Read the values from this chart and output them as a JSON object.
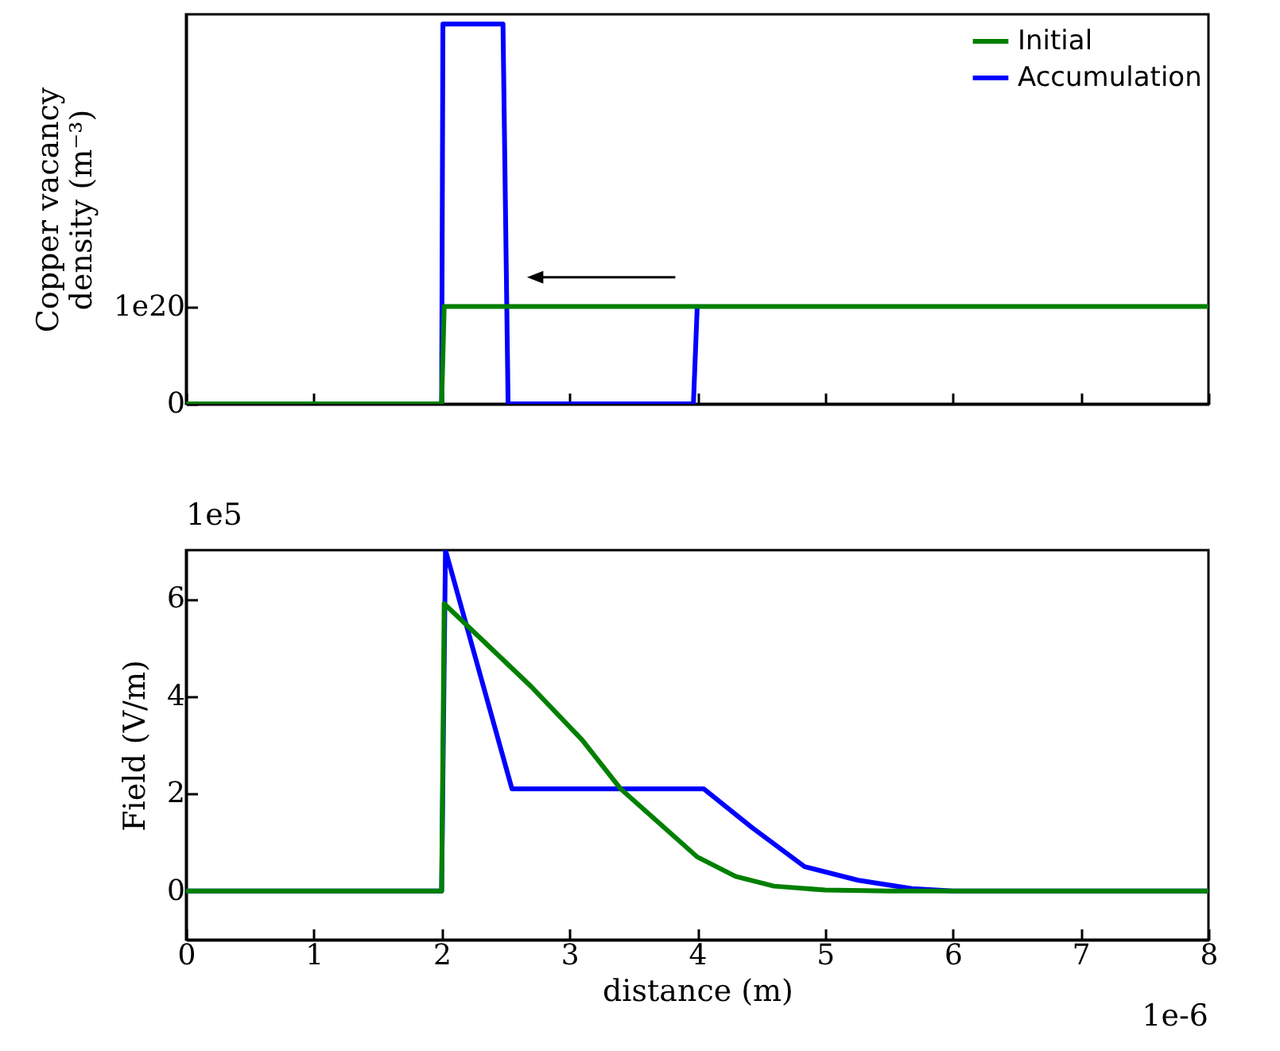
{
  "chart_data": [
    {
      "type": "line",
      "ylabel": "Copper vacancy density (m⁻³)",
      "xlim": [
        0,
        8
      ],
      "xticks": [
        0,
        1,
        2,
        3,
        4,
        5,
        6,
        7,
        8
      ],
      "ylim": [
        0,
        4e+20
      ],
      "yticks": [
        0,
        {
          "value": 1e+20,
          "label": "1e20"
        }
      ],
      "tick_labels": "y",
      "grid": false,
      "legend": "top right",
      "marker": "none",
      "line_style": "solid",
      "series": [
        {
          "name": "Initial",
          "color": "#008000",
          "x": [
            0,
            2.0,
            2.02,
            8
          ],
          "values": [
            0,
            0,
            1e+20,
            1e+20
          ]
        },
        {
          "name": "Accumulation",
          "color": "#0000ff",
          "x": [
            0,
            2.0,
            2.01,
            2.48,
            2.52,
            3.97,
            4.0
          ],
          "values": [
            0,
            0,
            3.9e+20,
            3.9e+20,
            0,
            0,
            1e+20
          ]
        }
      ]
    },
    {
      "type": "line",
      "xlabel": "distance (m)",
      "ylabel": "Field (V/m)",
      "annotations": [
        "1e5",
        "1e-6"
      ],
      "xlim": [
        0,
        8
      ],
      "xticks": [
        0,
        1,
        2,
        3,
        4,
        5,
        6,
        7,
        8
      ],
      "ylim": [
        -1,
        7
      ],
      "yticks": [
        0,
        2,
        4,
        6
      ],
      "grid": false,
      "legend": false,
      "marker": "none",
      "line_style": "solid",
      "series": [
        {
          "color": "#008000",
          "x": [
            0,
            2.0,
            2.02,
            2.3,
            2.7,
            3.1,
            3.4,
            3.7,
            4.0,
            4.3,
            4.6,
            5.0,
            5.5,
            8
          ],
          "values": [
            0,
            0,
            5.9,
            5.2,
            4.2,
            3.1,
            2.1,
            1.4,
            0.7,
            0.3,
            0.1,
            0.02,
            0,
            0
          ]
        },
        {
          "color": "#0000ff",
          "x": [
            0,
            2.0,
            2.03,
            2.55,
            4.05,
            4.43,
            4.84,
            5.26,
            5.68,
            6.0,
            8
          ],
          "values": [
            0,
            0,
            7,
            2.1,
            2.1,
            1.3,
            0.5,
            0.22,
            0.05,
            0,
            0
          ]
        }
      ]
    }
  ]
}
